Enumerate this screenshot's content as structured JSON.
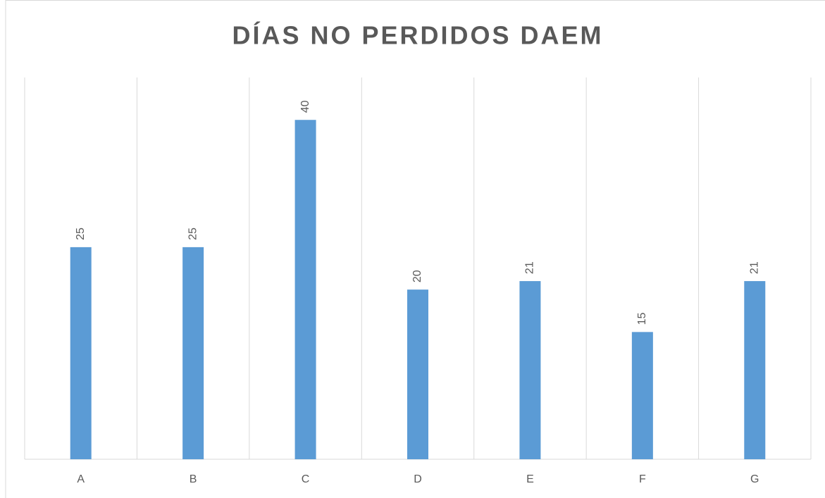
{
  "chart_data": {
    "type": "bar",
    "title": "DÍAS NO PERDIDOS DAEM",
    "categories": [
      "A",
      "B",
      "C",
      "D",
      "E",
      "F",
      "G"
    ],
    "values": [
      25,
      25,
      40,
      20,
      21,
      15,
      21
    ],
    "color": "#5b9bd5",
    "ylim": [
      0,
      45
    ]
  }
}
